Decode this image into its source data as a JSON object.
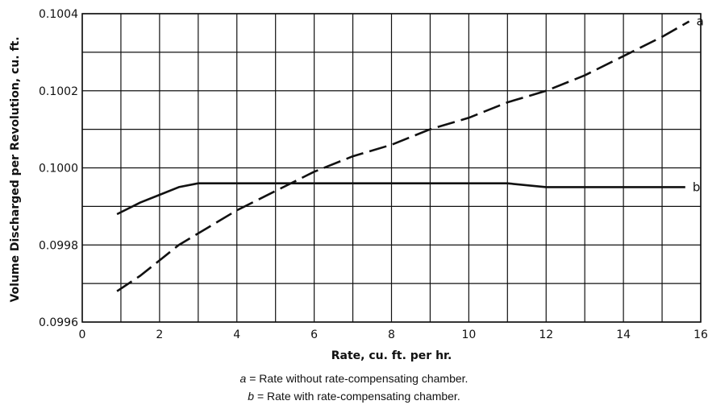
{
  "chart_data": {
    "type": "line",
    "title": "",
    "xlabel": "Rate, cu. ft. per hr.",
    "ylabel": "Volume Discharged per Revolution, cu. ft.",
    "xlim": [
      0,
      16
    ],
    "ylim": [
      0.0996,
      0.1004
    ],
    "x_ticks": [
      "0",
      "2",
      "4",
      "6",
      "8",
      "10",
      "12",
      "14",
      "16"
    ],
    "y_ticks": [
      "0.0996",
      "0.0998",
      "0.1000",
      "0.1002",
      "0.1004"
    ],
    "x_tick_values": [
      0,
      2,
      4,
      6,
      8,
      10,
      12,
      14,
      16
    ],
    "y_tick_values": [
      0.0996,
      0.0998,
      0.1,
      0.1002,
      0.1004
    ],
    "grid_x": [
      0,
      1,
      2,
      3,
      4,
      5,
      6,
      7,
      8,
      9,
      10,
      11,
      12,
      13,
      14,
      15,
      16
    ],
    "grid_y": [
      0.0996,
      0.0997,
      0.0998,
      0.0999,
      0.1,
      0.1001,
      0.1002,
      0.1003,
      0.1004
    ],
    "grid": true,
    "series": [
      {
        "name": "a",
        "style": "dashed",
        "x": [
          0.9,
          1.5,
          2,
          2.5,
          3,
          3.5,
          4,
          5,
          6,
          7,
          8,
          9,
          10,
          11,
          12,
          13,
          14,
          15,
          15.7
        ],
        "y": [
          0.09968,
          0.09972,
          0.09976,
          0.0998,
          0.09983,
          0.09986,
          0.09989,
          0.09994,
          0.09999,
          0.10003,
          0.10006,
          0.1001,
          0.10013,
          0.10017,
          0.1002,
          0.10024,
          0.10029,
          0.10034,
          0.10038
        ]
      },
      {
        "name": "b",
        "style": "solid",
        "x": [
          0.9,
          1.5,
          2,
          2.5,
          3,
          3.5,
          4,
          5,
          6,
          7,
          8,
          9,
          10,
          11,
          12,
          13,
          14,
          15,
          15.6
        ],
        "y": [
          0.09988,
          0.09991,
          0.09993,
          0.09995,
          0.09996,
          0.09996,
          0.09996,
          0.09996,
          0.09996,
          0.09996,
          0.09996,
          0.09996,
          0.09996,
          0.09996,
          0.09995,
          0.09995,
          0.09995,
          0.09995,
          0.09995
        ]
      }
    ],
    "colors": {
      "line": "#111111",
      "grid": "#111111"
    }
  },
  "notes": {
    "a_key": "a",
    "a_text": " = Rate without rate-compensating chamber.",
    "b_key": "b",
    "b_text": " = Rate with rate-compensating chamber."
  }
}
